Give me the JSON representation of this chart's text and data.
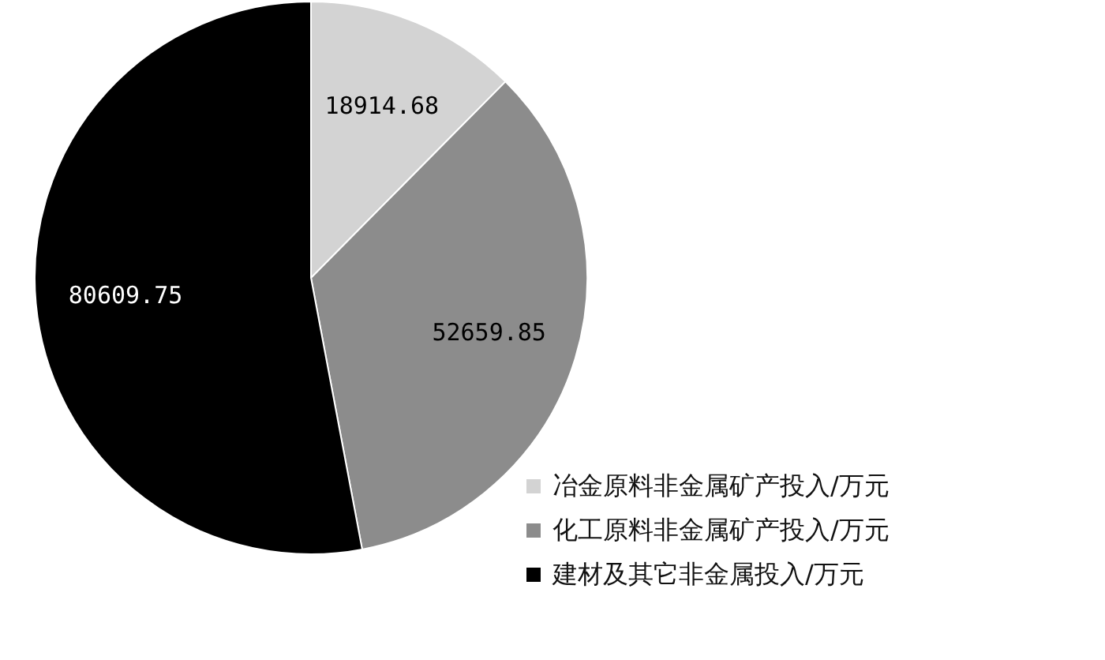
{
  "chart_data": {
    "type": "pie",
    "categories": [
      "冶金原料非金属矿产投入/万元",
      "化工原料非金属矿产投入/万元",
      "建材及其它非金属投入/万元"
    ],
    "values": [
      18914.68,
      52659.85,
      80609.75
    ],
    "colors": [
      "#d3d3d3",
      "#8c8c8c",
      "#000000"
    ],
    "data_labels": true,
    "legend": "bottom right"
  }
}
